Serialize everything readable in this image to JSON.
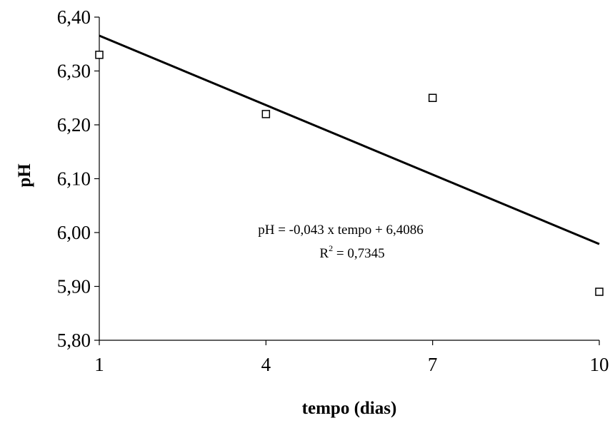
{
  "chart_data": {
    "type": "scatter",
    "title": "",
    "xlabel": "tempo (dias)",
    "ylabel": "pH",
    "xlim": [
      1,
      10
    ],
    "ylim": [
      5.8,
      6.4
    ],
    "x_ticks": [
      1,
      4,
      7,
      10
    ],
    "x_tick_labels": [
      "1",
      "4",
      "7",
      "10"
    ],
    "y_ticks": [
      5.8,
      5.9,
      6.0,
      6.1,
      6.2,
      6.3,
      6.4
    ],
    "y_tick_labels": [
      "5,80",
      "5,90",
      "6,00",
      "6,10",
      "6,20",
      "6,30",
      "6,40"
    ],
    "grid": false,
    "legend": false,
    "series": [
      {
        "x": [
          1,
          4,
          7,
          10
        ],
        "y": [
          6.33,
          6.22,
          6.25,
          5.89
        ],
        "marker": "open-square"
      }
    ],
    "trendline": {
      "slope": -0.043,
      "intercept": 6.4086,
      "x_range": [
        1,
        10
      ]
    },
    "annotation": {
      "equation": "pH = -0,043 x tempo + 6,4086",
      "r2_prefix": "R",
      "r2_exponent": "2",
      "r2_value": " = 0,7345"
    },
    "colors": {
      "axis": "#000000",
      "line": "#000000",
      "marker_stroke": "#000000",
      "marker_fill": "#ffffff"
    }
  }
}
